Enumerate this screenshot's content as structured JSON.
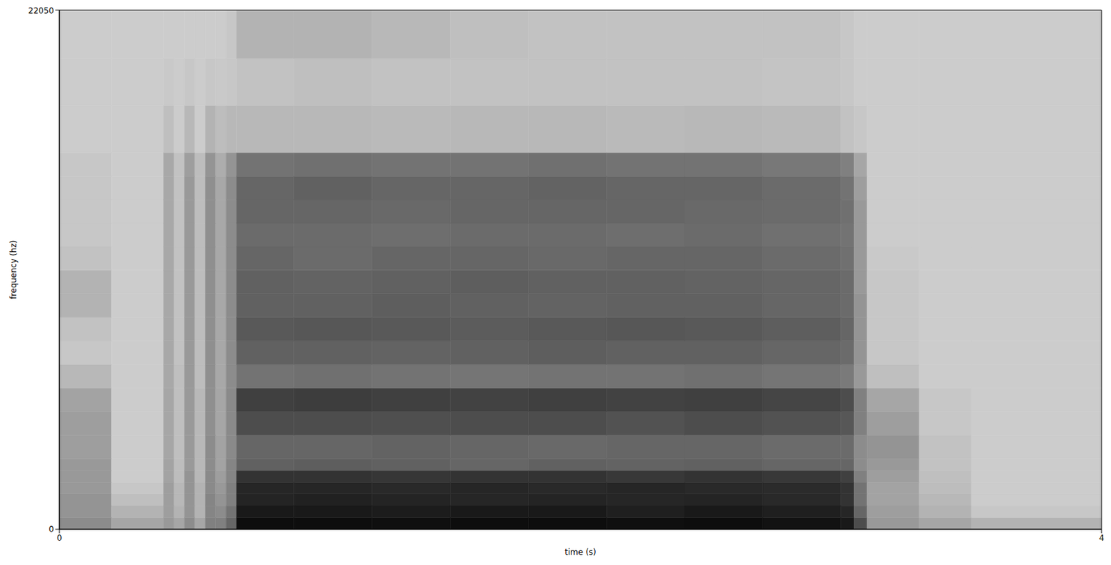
{
  "chart_data": {
    "type": "heatmap",
    "x_label": "time (s)",
    "y_label": "frequency (hz)",
    "xlim": [
      0,
      4
    ],
    "ylim": [
      0,
      22050
    ],
    "xticks": [
      0,
      4
    ],
    "yticks": [
      0,
      22050
    ],
    "zlim": [
      0,
      1
    ],
    "time_bins": [
      0,
      0.2,
      0.4,
      0.44,
      0.48,
      0.52,
      0.56,
      0.6,
      0.64,
      0.68,
      0.9,
      1.2,
      1.5,
      1.8,
      2.1,
      2.4,
      2.7,
      3.0,
      3.05,
      3.1,
      3.3,
      3.5,
      4.0
    ],
    "frequency_bins": [
      0,
      500,
      1000,
      1500,
      2000,
      2500,
      3000,
      4000,
      5000,
      6000,
      7000,
      8000,
      9000,
      10000,
      11000,
      12000,
      13000,
      14000,
      15000,
      16000,
      18000,
      20000,
      22050
    ],
    "cells": [
      [
        0.45,
        0.35,
        0.4,
        0.35,
        0.45,
        0.35,
        0.5,
        0.5,
        0.6,
        0.95,
        0.95,
        0.94,
        0.95,
        0.95,
        0.94,
        0.95,
        0.93,
        0.9,
        0.7,
        0.4,
        0.35,
        0.3
      ],
      [
        0.42,
        0.3,
        0.38,
        0.3,
        0.42,
        0.3,
        0.48,
        0.45,
        0.55,
        0.9,
        0.9,
        0.89,
        0.9,
        0.9,
        0.88,
        0.9,
        0.88,
        0.85,
        0.6,
        0.38,
        0.3,
        0.22
      ],
      [
        0.42,
        0.25,
        0.38,
        0.28,
        0.42,
        0.3,
        0.48,
        0.42,
        0.5,
        0.86,
        0.87,
        0.86,
        0.85,
        0.86,
        0.85,
        0.86,
        0.84,
        0.8,
        0.55,
        0.36,
        0.28,
        0.2
      ],
      [
        0.4,
        0.22,
        0.38,
        0.28,
        0.42,
        0.3,
        0.46,
        0.4,
        0.5,
        0.85,
        0.85,
        0.84,
        0.85,
        0.84,
        0.85,
        0.84,
        0.83,
        0.8,
        0.55,
        0.36,
        0.26,
        0.2
      ],
      [
        0.4,
        0.2,
        0.36,
        0.26,
        0.42,
        0.28,
        0.46,
        0.38,
        0.48,
        0.8,
        0.8,
        0.79,
        0.8,
        0.8,
        0.78,
        0.8,
        0.78,
        0.75,
        0.5,
        0.38,
        0.25,
        0.2
      ],
      [
        0.4,
        0.2,
        0.36,
        0.26,
        0.4,
        0.28,
        0.45,
        0.36,
        0.48,
        0.62,
        0.63,
        0.62,
        0.6,
        0.62,
        0.61,
        0.62,
        0.6,
        0.6,
        0.45,
        0.4,
        0.24,
        0.2
      ],
      [
        0.38,
        0.2,
        0.35,
        0.25,
        0.4,
        0.28,
        0.45,
        0.36,
        0.46,
        0.6,
        0.6,
        0.61,
        0.6,
        0.59,
        0.6,
        0.6,
        0.58,
        0.58,
        0.45,
        0.42,
        0.24,
        0.2
      ],
      [
        0.38,
        0.2,
        0.35,
        0.25,
        0.4,
        0.28,
        0.44,
        0.35,
        0.46,
        0.7,
        0.7,
        0.69,
        0.7,
        0.7,
        0.68,
        0.7,
        0.68,
        0.66,
        0.5,
        0.38,
        0.22,
        0.2
      ],
      [
        0.36,
        0.2,
        0.35,
        0.25,
        0.4,
        0.28,
        0.44,
        0.35,
        0.46,
        0.75,
        0.76,
        0.75,
        0.74,
        0.75,
        0.74,
        0.75,
        0.73,
        0.7,
        0.5,
        0.35,
        0.22,
        0.2
      ],
      [
        0.28,
        0.2,
        0.34,
        0.25,
        0.4,
        0.26,
        0.44,
        0.34,
        0.45,
        0.55,
        0.56,
        0.55,
        0.54,
        0.55,
        0.55,
        0.56,
        0.54,
        0.52,
        0.4,
        0.25,
        0.2,
        0.2
      ],
      [
        0.22,
        0.2,
        0.34,
        0.24,
        0.4,
        0.26,
        0.44,
        0.34,
        0.45,
        0.62,
        0.62,
        0.61,
        0.62,
        0.63,
        0.62,
        0.62,
        0.6,
        0.58,
        0.42,
        0.22,
        0.2,
        0.2
      ],
      [
        0.24,
        0.2,
        0.34,
        0.24,
        0.4,
        0.26,
        0.44,
        0.34,
        0.45,
        0.65,
        0.66,
        0.65,
        0.64,
        0.65,
        0.66,
        0.65,
        0.63,
        0.6,
        0.42,
        0.22,
        0.2,
        0.2
      ],
      [
        0.3,
        0.2,
        0.34,
        0.24,
        0.4,
        0.26,
        0.44,
        0.34,
        0.45,
        0.62,
        0.62,
        0.63,
        0.62,
        0.61,
        0.62,
        0.62,
        0.6,
        0.58,
        0.42,
        0.22,
        0.2,
        0.2
      ],
      [
        0.3,
        0.2,
        0.34,
        0.24,
        0.4,
        0.26,
        0.44,
        0.34,
        0.45,
        0.62,
        0.61,
        0.62,
        0.63,
        0.62,
        0.62,
        0.61,
        0.6,
        0.58,
        0.4,
        0.22,
        0.2,
        0.2
      ],
      [
        0.24,
        0.2,
        0.34,
        0.24,
        0.4,
        0.26,
        0.44,
        0.34,
        0.45,
        0.6,
        0.58,
        0.6,
        0.6,
        0.59,
        0.6,
        0.6,
        0.58,
        0.56,
        0.4,
        0.21,
        0.2,
        0.2
      ],
      [
        0.22,
        0.2,
        0.34,
        0.24,
        0.4,
        0.26,
        0.44,
        0.34,
        0.45,
        0.58,
        0.58,
        0.57,
        0.58,
        0.58,
        0.57,
        0.58,
        0.56,
        0.55,
        0.4,
        0.2,
        0.2,
        0.2
      ],
      [
        0.22,
        0.2,
        0.34,
        0.24,
        0.4,
        0.26,
        0.44,
        0.34,
        0.45,
        0.6,
        0.6,
        0.59,
        0.6,
        0.6,
        0.6,
        0.59,
        0.58,
        0.56,
        0.4,
        0.2,
        0.2,
        0.2
      ],
      [
        0.22,
        0.2,
        0.34,
        0.24,
        0.4,
        0.26,
        0.44,
        0.34,
        0.45,
        0.6,
        0.62,
        0.6,
        0.6,
        0.61,
        0.6,
        0.6,
        0.58,
        0.55,
        0.38,
        0.2,
        0.2,
        0.2
      ],
      [
        0.22,
        0.2,
        0.34,
        0.24,
        0.38,
        0.26,
        0.42,
        0.32,
        0.42,
        0.55,
        0.56,
        0.55,
        0.55,
        0.56,
        0.55,
        0.55,
        0.53,
        0.5,
        0.35,
        0.2,
        0.2,
        0.2
      ],
      [
        0.2,
        0.2,
        0.25,
        0.2,
        0.28,
        0.2,
        0.3,
        0.26,
        0.28,
        0.28,
        0.28,
        0.27,
        0.28,
        0.28,
        0.27,
        0.28,
        0.27,
        0.24,
        0.22,
        0.2,
        0.2,
        0.2
      ],
      [
        0.2,
        0.2,
        0.21,
        0.2,
        0.22,
        0.2,
        0.22,
        0.21,
        0.22,
        0.24,
        0.25,
        0.24,
        0.24,
        0.24,
        0.24,
        0.24,
        0.23,
        0.22,
        0.2,
        0.2,
        0.2,
        0.2
      ],
      [
        0.2,
        0.2,
        0.2,
        0.2,
        0.2,
        0.2,
        0.2,
        0.2,
        0.22,
        0.3,
        0.3,
        0.28,
        0.25,
        0.24,
        0.24,
        0.24,
        0.24,
        0.22,
        0.2,
        0.2,
        0.2,
        0.2
      ]
    ]
  }
}
